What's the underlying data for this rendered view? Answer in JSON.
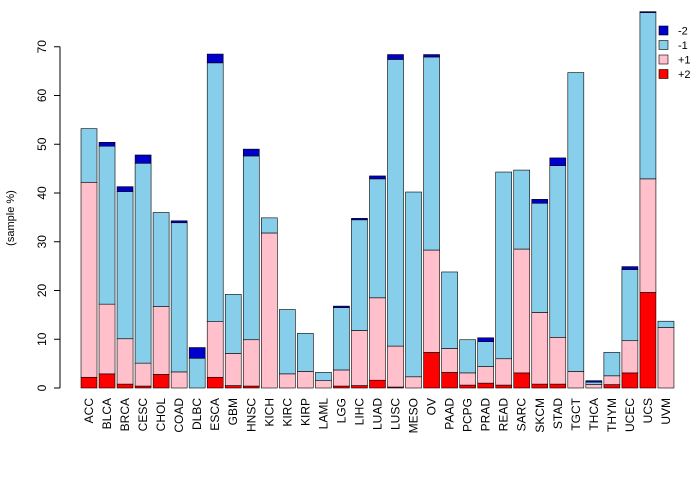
{
  "chart_data": {
    "type": "bar",
    "stacked": true,
    "title": "",
    "xlabel": "",
    "ylabel": "(sample %)",
    "ylim": [
      0,
      75
    ],
    "yticks": [
      0,
      10,
      20,
      30,
      40,
      50,
      60,
      70
    ],
    "grid": false,
    "legend_position": "top-right",
    "categories": [
      "ACC",
      "BLCA",
      "BRCA",
      "CESC",
      "CHOL",
      "COAD",
      "DLBC",
      "ESCA",
      "GBM",
      "HNSC",
      "KICH",
      "KIRC",
      "KIRP",
      "LAML",
      "LGG",
      "LIHC",
      "LUAD",
      "LUSC",
      "MESO",
      "OV",
      "PAAD",
      "PCPG",
      "PRAD",
      "READ",
      "SARC",
      "SKCM",
      "STAD",
      "TGCT",
      "THCA",
      "THYM",
      "UCEC",
      "UCS",
      "UVM"
    ],
    "series": [
      {
        "name": "+2",
        "color": "#ff0000",
        "values": [
          2.2,
          2.9,
          0.8,
          0.4,
          2.8,
          0,
          0,
          2.2,
          0.5,
          0.4,
          0,
          0,
          0,
          0,
          0.4,
          0.5,
          1.6,
          0.2,
          0,
          7.3,
          3.2,
          0.6,
          1.0,
          0.6,
          3.1,
          0.8,
          0.8,
          0,
          0,
          0.7,
          3.1,
          19.6,
          0
        ]
      },
      {
        "name": "+1",
        "color": "#ffc0cb",
        "values": [
          40.0,
          14.3,
          9.3,
          4.7,
          13.9,
          3.3,
          0,
          11.4,
          6.6,
          9.5,
          31.8,
          2.9,
          3.4,
          1.5,
          3.3,
          11.3,
          16.9,
          8.4,
          2.3,
          21.0,
          4.9,
          2.5,
          3.4,
          5.4,
          25.4,
          14.7,
          9.6,
          3.4,
          0.7,
          1.8,
          6.6,
          23.3,
          12.4
        ]
      },
      {
        "name": "-1",
        "color": "#87ceeb",
        "values": [
          11.0,
          32.4,
          30.2,
          41.0,
          19.3,
          30.6,
          6.1,
          53.1,
          12.1,
          37.7,
          3.1,
          13.2,
          7.8,
          1.7,
          12.8,
          22.7,
          24.4,
          58.8,
          37.9,
          39.6,
          15.7,
          6.8,
          5.1,
          38.3,
          16.2,
          22.4,
          35.2,
          61.3,
          0.5,
          4.8,
          14.6,
          34.1,
          1.3
        ]
      },
      {
        "name": "-2",
        "color": "#0000cd",
        "values": [
          0,
          0.8,
          1.0,
          1.7,
          0,
          0.4,
          2.2,
          1.8,
          0,
          1.4,
          0,
          0,
          0,
          0,
          0.3,
          0.3,
          0.6,
          1.0,
          0,
          0.5,
          0,
          0,
          0.8,
          0,
          0,
          0.8,
          1.6,
          0,
          0.3,
          0,
          0.6,
          0.2,
          0
        ]
      }
    ],
    "legend_order": [
      "-2",
      "-1",
      "+1",
      "+2"
    ]
  }
}
